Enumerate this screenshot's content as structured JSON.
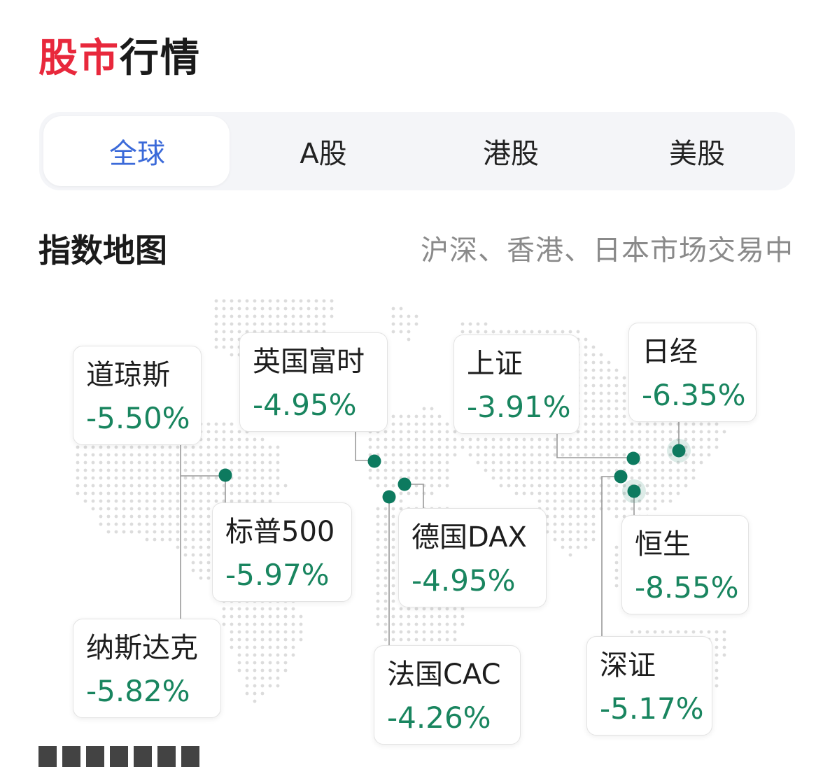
{
  "header": {
    "title_part1": "股市",
    "title_part2": "行情"
  },
  "tabs": [
    {
      "label": "全球",
      "active": true
    },
    {
      "label": "A股",
      "active": false
    },
    {
      "label": "港股",
      "active": false
    },
    {
      "label": "美股",
      "active": false
    }
  ],
  "section": {
    "title": "指数地图",
    "status": "沪深、香港、日本市场交易中"
  },
  "colors": {
    "accent_red": "#e8283c",
    "tab_active": "#3b6ad9",
    "down_green": "#19855f",
    "marker": "#0d7a5f"
  },
  "indices": [
    {
      "name": "道琼斯",
      "change": "-5.50%"
    },
    {
      "name": "英国富时",
      "change": "-4.95%"
    },
    {
      "name": "上证",
      "change": "-3.91%"
    },
    {
      "name": "日经",
      "change": "-6.35%"
    },
    {
      "name": "标普500",
      "change": "-5.97%"
    },
    {
      "name": "德国DAX",
      "change": "-4.95%"
    },
    {
      "name": "恒生",
      "change": "-8.55%"
    },
    {
      "name": "纳斯达克",
      "change": "-5.82%"
    },
    {
      "name": "法国CAC",
      "change": "-4.26%"
    },
    {
      "name": "深证",
      "change": "-5.17%"
    }
  ]
}
